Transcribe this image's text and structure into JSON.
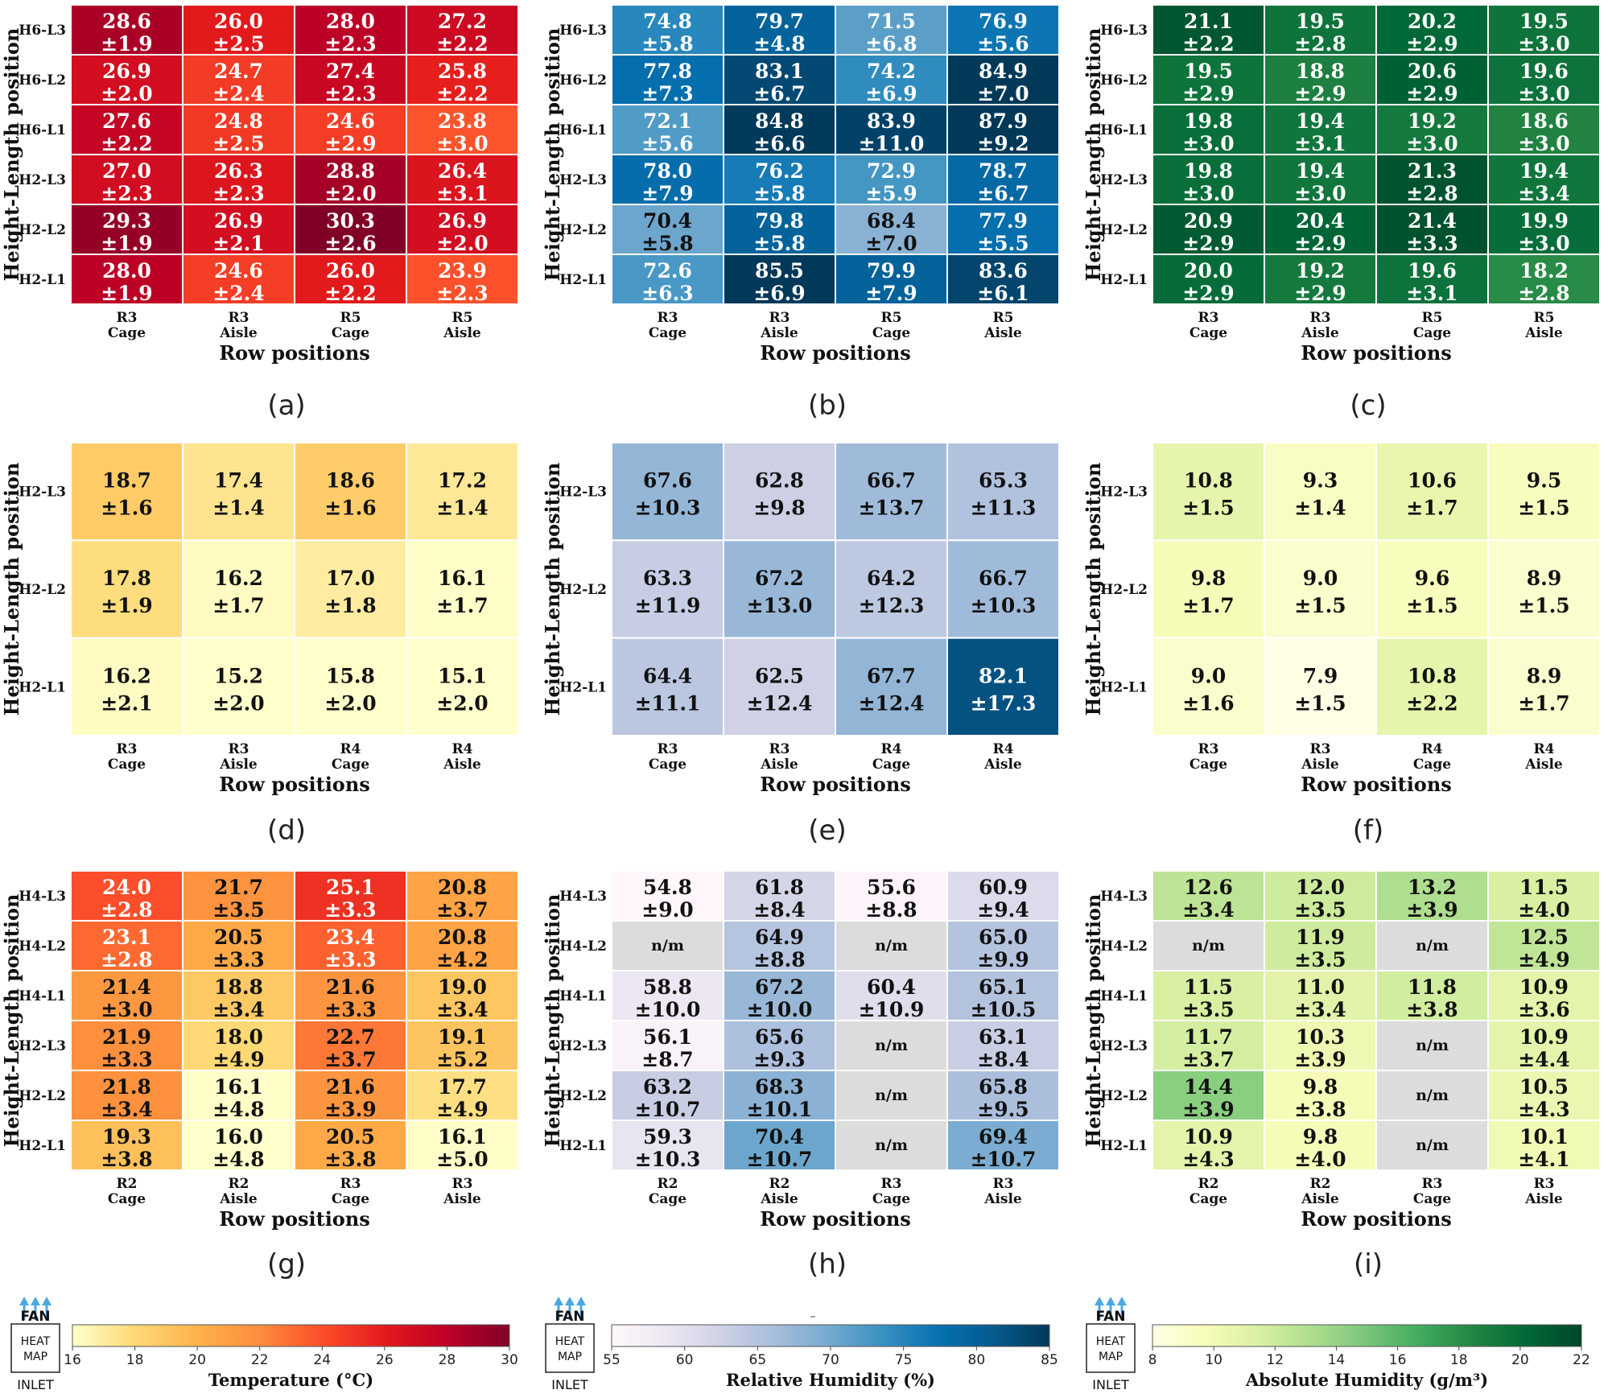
{
  "chart_data": [
    {
      "type": "heatmap",
      "panel_label": "(a)",
      "scale": "temp",
      "xlabel": "Row positions",
      "ylabel": "Height-Length position",
      "rows": [
        "H6-L3",
        "H6-L2",
        "H6-L1",
        "H2-L3",
        "H2-L2",
        "H2-L1"
      ],
      "columns": [
        [
          "R3",
          "Cage"
        ],
        [
          "R3",
          "Aisle"
        ],
        [
          "R5",
          "Cage"
        ],
        [
          "R5",
          "Aisle"
        ]
      ],
      "values": [
        [
          28.6,
          26.0,
          28.0,
          27.2
        ],
        [
          26.9,
          24.7,
          27.4,
          25.8
        ],
        [
          27.6,
          24.8,
          24.6,
          23.8
        ],
        [
          27.0,
          26.3,
          28.8,
          26.4
        ],
        [
          29.3,
          26.9,
          30.3,
          26.9
        ],
        [
          28.0,
          24.6,
          26.0,
          23.9
        ]
      ],
      "sd": [
        [
          "±1.9",
          "±2.5",
          "±2.3",
          "±2.2"
        ],
        [
          "±2.0",
          "±2.4",
          "±2.3",
          "±2.2"
        ],
        [
          "±2.2",
          "±2.5",
          "±2.9",
          "±3.0"
        ],
        [
          "±2.3",
          "±2.3",
          "±2.0",
          "±3.1"
        ],
        [
          "±1.9",
          "±2.1",
          "±2.6",
          "±2.0"
        ],
        [
          "±1.9",
          "±2.4",
          "±2.2",
          "±2.3"
        ]
      ]
    },
    {
      "type": "heatmap",
      "panel_label": "(b)",
      "scale": "rh",
      "xlabel": "Row positions",
      "ylabel": "Height-Length position",
      "rows": [
        "H6-L3",
        "H6-L2",
        "H6-L1",
        "H2-L3",
        "H2-L2",
        "H2-L1"
      ],
      "columns": [
        [
          "R3",
          "Cage"
        ],
        [
          "R3",
          "Aisle"
        ],
        [
          "R5",
          "Cage"
        ],
        [
          "R5",
          "Aisle"
        ]
      ],
      "values": [
        [
          74.8,
          79.7,
          71.5,
          76.9
        ],
        [
          77.8,
          83.1,
          74.2,
          84.9
        ],
        [
          72.1,
          84.8,
          83.9,
          87.9
        ],
        [
          78.0,
          76.2,
          72.9,
          78.7
        ],
        [
          70.4,
          79.8,
          68.4,
          77.9
        ],
        [
          72.6,
          85.5,
          79.9,
          83.6
        ]
      ],
      "sd": [
        [
          "±5.8",
          "±4.8",
          "±6.8",
          "±5.6"
        ],
        [
          "±7.3",
          "±6.7",
          "±6.9",
          "±7.0"
        ],
        [
          "±5.6",
          "±6.6",
          "±11.0",
          "±9.2"
        ],
        [
          "±7.9",
          "±5.8",
          "±5.9",
          "±6.7"
        ],
        [
          "±5.8",
          "±5.8",
          "±7.0",
          "±5.5"
        ],
        [
          "±6.3",
          "±6.9",
          "±7.9",
          "±6.1"
        ]
      ]
    },
    {
      "type": "heatmap",
      "panel_label": "(c)",
      "scale": "ah",
      "xlabel": "Row positions",
      "ylabel": "Height-Length position",
      "rows": [
        "H6-L3",
        "H6-L2",
        "H6-L1",
        "H2-L3",
        "H2-L2",
        "H2-L1"
      ],
      "columns": [
        [
          "R3",
          "Cage"
        ],
        [
          "R3",
          "Aisle"
        ],
        [
          "R5",
          "Cage"
        ],
        [
          "R5",
          "Aisle"
        ]
      ],
      "values": [
        [
          21.1,
          19.5,
          20.2,
          19.5
        ],
        [
          19.5,
          18.8,
          20.6,
          19.6
        ],
        [
          19.8,
          19.4,
          19.2,
          18.6
        ],
        [
          19.8,
          19.4,
          21.3,
          19.4
        ],
        [
          20.9,
          20.4,
          21.4,
          19.9
        ],
        [
          20.0,
          19.2,
          19.6,
          18.2
        ]
      ],
      "sd": [
        [
          "±2.2",
          "±2.8",
          "±2.9",
          "±3.0"
        ],
        [
          "±2.9",
          "±2.9",
          "±2.9",
          "±3.0"
        ],
        [
          "±3.0",
          "±3.1",
          "±3.0",
          "±3.0"
        ],
        [
          "±3.0",
          "±3.0",
          "±2.8",
          "±3.4"
        ],
        [
          "±2.9",
          "±2.9",
          "±3.3",
          "±3.0"
        ],
        [
          "±2.9",
          "±2.9",
          "±3.1",
          "±2.8"
        ]
      ]
    },
    {
      "type": "heatmap",
      "panel_label": "(d)",
      "scale": "temp",
      "xlabel": "Row positions",
      "ylabel": "Height-Length position",
      "rows": [
        "H2-L3",
        "H2-L2",
        "H2-L1"
      ],
      "columns": [
        [
          "R3",
          "Cage"
        ],
        [
          "R3",
          "Aisle"
        ],
        [
          "R4",
          "Cage"
        ],
        [
          "R4",
          "Aisle"
        ]
      ],
      "values": [
        [
          18.7,
          17.4,
          18.6,
          17.2
        ],
        [
          17.8,
          16.2,
          17.0,
          16.1
        ],
        [
          16.2,
          15.2,
          15.8,
          15.1
        ]
      ],
      "sd": [
        [
          "±1.6",
          "±1.4",
          "±1.6",
          "±1.4"
        ],
        [
          "±1.9",
          "±1.7",
          "±1.8",
          "±1.7"
        ],
        [
          "±2.1",
          "±2.0",
          "±2.0",
          "±2.0"
        ]
      ]
    },
    {
      "type": "heatmap",
      "panel_label": "(e)",
      "scale": "rh",
      "xlabel": "Row positions",
      "ylabel": "Height-Length position",
      "rows": [
        "H2-L3",
        "H2-L2",
        "H2-L1"
      ],
      "columns": [
        [
          "R3",
          "Cage"
        ],
        [
          "R3",
          "Aisle"
        ],
        [
          "R4",
          "Cage"
        ],
        [
          "R4",
          "Aisle"
        ]
      ],
      "values": [
        [
          67.6,
          62.8,
          66.7,
          65.3
        ],
        [
          63.3,
          67.2,
          64.2,
          66.7
        ],
        [
          64.4,
          62.5,
          67.7,
          82.1
        ]
      ],
      "sd": [
        [
          "±10.3",
          "±9.8",
          "±13.7",
          "±11.3"
        ],
        [
          "±11.9",
          "±13.0",
          "±12.3",
          "±10.3"
        ],
        [
          "±11.1",
          "±12.4",
          "±12.4",
          "±17.3"
        ]
      ]
    },
    {
      "type": "heatmap",
      "panel_label": "(f)",
      "scale": "ah",
      "xlabel": "Row positions",
      "ylabel": "Height-Length position",
      "rows": [
        "H2-L3",
        "H2-L2",
        "H2-L1"
      ],
      "columns": [
        [
          "R3",
          "Cage"
        ],
        [
          "R3",
          "Aisle"
        ],
        [
          "R4",
          "Cage"
        ],
        [
          "R4",
          "Aisle"
        ]
      ],
      "values": [
        [
          10.8,
          9.3,
          10.6,
          9.5
        ],
        [
          9.8,
          9.0,
          9.6,
          8.9
        ],
        [
          9.0,
          7.9,
          10.8,
          8.9
        ]
      ],
      "sd": [
        [
          "±1.5",
          "±1.4",
          "±1.7",
          "±1.5"
        ],
        [
          "±1.7",
          "±1.5",
          "±1.5",
          "±1.5"
        ],
        [
          "±1.6",
          "±1.5",
          "±2.2",
          "±1.7"
        ]
      ]
    },
    {
      "type": "heatmap",
      "panel_label": "(g)",
      "scale": "temp",
      "xlabel": "Row positions",
      "ylabel": "Height-Length position",
      "rows": [
        "H4-L3",
        "H4-L2",
        "H4-L1",
        "H2-L3",
        "H2-L2",
        "H2-L1"
      ],
      "columns": [
        [
          "R2",
          "Cage"
        ],
        [
          "R2",
          "Aisle"
        ],
        [
          "R3",
          "Cage"
        ],
        [
          "R3",
          "Aisle"
        ]
      ],
      "values": [
        [
          24.0,
          21.7,
          25.1,
          20.8
        ],
        [
          23.1,
          20.5,
          23.4,
          20.8
        ],
        [
          21.4,
          18.8,
          21.6,
          19.0
        ],
        [
          21.9,
          18.0,
          22.7,
          19.1
        ],
        [
          21.8,
          16.1,
          21.6,
          17.7
        ],
        [
          19.3,
          16.0,
          20.5,
          16.1
        ]
      ],
      "sd": [
        [
          "±2.8",
          "±3.5",
          "±3.3",
          "±3.7"
        ],
        [
          "±2.8",
          "±3.3",
          "±3.3",
          "±4.2"
        ],
        [
          "±3.0",
          "±3.4",
          "±3.3",
          "±3.4"
        ],
        [
          "±3.3",
          "±4.9",
          "±3.7",
          "±5.2"
        ],
        [
          "±3.4",
          "±4.8",
          "±3.9",
          "±4.9"
        ],
        [
          "±3.8",
          "±4.8",
          "±3.8",
          "±5.0"
        ]
      ]
    },
    {
      "type": "heatmap",
      "panel_label": "(h)",
      "scale": "rh",
      "xlabel": "Row positions",
      "ylabel": "Height-Length position",
      "missing_label": "n/m",
      "rows": [
        "H4-L3",
        "H4-L2",
        "H4-L1",
        "H2-L3",
        "H2-L2",
        "H2-L1"
      ],
      "columns": [
        [
          "R2",
          "Cage"
        ],
        [
          "R2",
          "Aisle"
        ],
        [
          "R3",
          "Cage"
        ],
        [
          "R3",
          "Aisle"
        ]
      ],
      "values": [
        [
          54.8,
          61.8,
          55.6,
          60.9
        ],
        [
          null,
          64.9,
          null,
          65.0
        ],
        [
          58.8,
          67.2,
          60.4,
          65.1
        ],
        [
          56.1,
          65.6,
          null,
          63.1
        ],
        [
          63.2,
          68.3,
          null,
          65.8
        ],
        [
          59.3,
          70.4,
          null,
          69.4
        ]
      ],
      "sd": [
        [
          "±9.0",
          "±8.4",
          "±8.8",
          "±9.4"
        ],
        [
          null,
          "±8.8",
          null,
          "±9.9"
        ],
        [
          "±10.0",
          "±10.0",
          "±10.9",
          "±10.5"
        ],
        [
          "±8.7",
          "±9.3",
          null,
          "±8.4"
        ],
        [
          "±10.7",
          "±10.1",
          null,
          "±9.5"
        ],
        [
          "±10.3",
          "±10.7",
          null,
          "±10.7"
        ]
      ]
    },
    {
      "type": "heatmap",
      "panel_label": "(i)",
      "scale": "ah",
      "xlabel": "Row positions",
      "ylabel": "Height-Length position",
      "missing_label": "n/m",
      "rows": [
        "H4-L3",
        "H4-L2",
        "H4-L1",
        "H2-L3",
        "H2-L2",
        "H2-L1"
      ],
      "columns": [
        [
          "R2",
          "Cage"
        ],
        [
          "R2",
          "Aisle"
        ],
        [
          "R3",
          "Cage"
        ],
        [
          "R3",
          "Aisle"
        ]
      ],
      "values": [
        [
          12.6,
          12.0,
          13.2,
          11.5
        ],
        [
          null,
          11.9,
          null,
          12.5
        ],
        [
          11.5,
          11.0,
          11.8,
          10.9
        ],
        [
          11.7,
          10.3,
          null,
          10.9
        ],
        [
          14.4,
          9.8,
          null,
          10.5
        ],
        [
          10.9,
          9.8,
          null,
          10.1
        ]
      ],
      "sd": [
        [
          "±3.4",
          "±3.5",
          "±3.9",
          "±4.0"
        ],
        [
          null,
          "±3.5",
          null,
          "±4.9"
        ],
        [
          "±3.5",
          "±3.4",
          "±3.8",
          "±3.6"
        ],
        [
          "±3.7",
          "±3.9",
          null,
          "±4.4"
        ],
        [
          "±3.9",
          "±3.8",
          null,
          "±4.3"
        ],
        [
          "±4.3",
          "±4.0",
          null,
          "±4.1"
        ]
      ]
    }
  ],
  "colorbars": [
    {
      "scale": "temp",
      "label": "Temperature (°C)",
      "min": 16,
      "max": 30,
      "ticks": [
        16,
        18,
        20,
        22,
        24,
        26,
        28,
        30
      ],
      "stops": [
        "#ffffcc",
        "#fed976",
        "#feb24c",
        "#fd8d3c",
        "#fc4e2a",
        "#e31a1c",
        "#bd0026",
        "#800026"
      ]
    },
    {
      "scale": "rh",
      "label": "Relative Humidity (%)",
      "min": 55,
      "max": 85,
      "ticks": [
        55,
        60,
        65,
        70,
        75,
        80,
        85
      ],
      "stops": [
        "#fff7fb",
        "#ece7f2",
        "#d0d1e6",
        "#a6bddb",
        "#74a9cf",
        "#3690c0",
        "#0570b0",
        "#045a8d",
        "#023858"
      ]
    },
    {
      "scale": "ah",
      "label": "Absolute Humidity (g/m³)",
      "min": 8,
      "max": 22,
      "ticks": [
        8,
        10,
        12,
        14,
        16,
        18,
        20,
        22
      ],
      "stops": [
        "#ffffe5",
        "#f7fcb9",
        "#d9f0a3",
        "#addd8e",
        "#78c679",
        "#41ab5d",
        "#238443",
        "#006837",
        "#004529"
      ]
    }
  ],
  "legend_icon": {
    "fan": "FAN",
    "box_line1": "HEAT",
    "box_line2": "MAP",
    "inlet": "INLET",
    "arrow_color": "#4aa8e0"
  },
  "missing_color": "#dcdcdc",
  "stray_mark": "–"
}
